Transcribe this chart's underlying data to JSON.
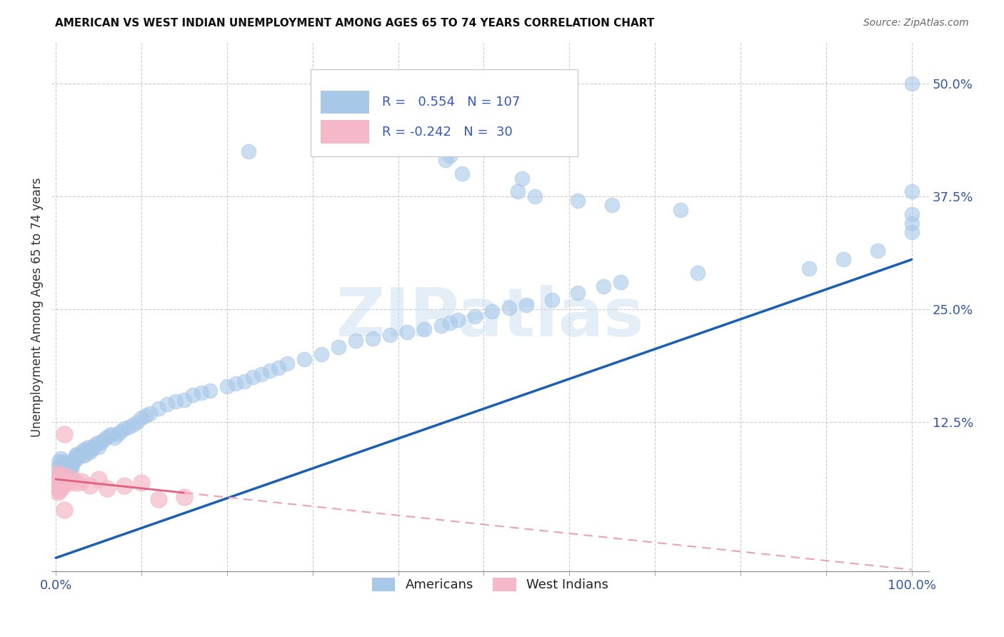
{
  "title": "AMERICAN VS WEST INDIAN UNEMPLOYMENT AMONG AGES 65 TO 74 YEARS CORRELATION CHART",
  "source": "Source: ZipAtlas.com",
  "ylabel": "Unemployment Among Ages 65 to 74 years",
  "xlim": [
    -0.005,
    1.02
  ],
  "ylim": [
    -0.04,
    0.545
  ],
  "xtick_positions": [
    0.0,
    0.1,
    0.2,
    0.3,
    0.4,
    0.5,
    0.6,
    0.7,
    0.8,
    0.9,
    1.0
  ],
  "xtick_labels": [
    "0.0%",
    "",
    "",
    "",
    "",
    "",
    "",
    "",
    "",
    "",
    "100.0%"
  ],
  "ytick_positions": [
    0.125,
    0.25,
    0.375,
    0.5
  ],
  "ytick_labels": [
    "12.5%",
    "25.0%",
    "37.5%",
    "50.0%"
  ],
  "american_color": "#a8c8e8",
  "west_indian_color": "#f4b8c8",
  "trend_american_color": "#1a5fb4",
  "trend_west_indian_color": "#e06080",
  "trend_west_indian_color_dash": "#f0a0b0",
  "legend_r_american": " 0.554",
  "legend_n_american": "107",
  "legend_r_west_indian": "-0.242",
  "legend_n_west_indian": " 30",
  "am_slope": 0.33,
  "am_intercept": -0.025,
  "wi_slope": -0.1,
  "wi_intercept": 0.062,
  "wi_line_xmax": 1.0,
  "watermark_text": "ZIPatlas",
  "american_x": [
    0.002,
    0.003,
    0.004,
    0.005,
    0.005,
    0.006,
    0.006,
    0.007,
    0.007,
    0.008,
    0.008,
    0.009,
    0.009,
    0.01,
    0.01,
    0.011,
    0.011,
    0.012,
    0.012,
    0.013,
    0.013,
    0.014,
    0.015,
    0.015,
    0.016,
    0.016,
    0.017,
    0.018,
    0.019,
    0.02,
    0.021,
    0.022,
    0.023,
    0.024,
    0.025,
    0.026,
    0.028,
    0.03,
    0.032,
    0.033,
    0.035,
    0.037,
    0.038,
    0.04,
    0.042,
    0.044,
    0.046,
    0.048,
    0.05,
    0.052,
    0.055,
    0.058,
    0.062,
    0.065,
    0.068,
    0.072,
    0.076,
    0.08,
    0.085,
    0.09,
    0.095,
    0.1,
    0.105,
    0.11,
    0.12,
    0.13,
    0.14,
    0.15,
    0.16,
    0.17,
    0.18,
    0.2,
    0.21,
    0.22,
    0.23,
    0.24,
    0.25,
    0.26,
    0.27,
    0.29,
    0.31,
    0.33,
    0.35,
    0.37,
    0.39,
    0.41,
    0.43,
    0.45,
    0.46,
    0.47,
    0.49,
    0.51,
    0.53,
    0.55,
    0.58,
    0.61,
    0.64,
    0.66,
    0.75,
    0.88,
    0.92,
    0.96,
    1.0,
    1.0,
    1.0,
    1.0,
    1.0
  ],
  "american_y": [
    0.075,
    0.082,
    0.068,
    0.078,
    0.065,
    0.072,
    0.085,
    0.07,
    0.08,
    0.068,
    0.075,
    0.082,
    0.072,
    0.07,
    0.078,
    0.075,
    0.068,
    0.08,
    0.072,
    0.075,
    0.068,
    0.078,
    0.08,
    0.072,
    0.075,
    0.068,
    0.082,
    0.072,
    0.078,
    0.08,
    0.082,
    0.085,
    0.088,
    0.09,
    0.085,
    0.088,
    0.09,
    0.092,
    0.088,
    0.095,
    0.09,
    0.095,
    0.098,
    0.092,
    0.095,
    0.098,
    0.1,
    0.102,
    0.098,
    0.102,
    0.105,
    0.108,
    0.11,
    0.112,
    0.108,
    0.112,
    0.115,
    0.118,
    0.12,
    0.122,
    0.125,
    0.13,
    0.132,
    0.135,
    0.14,
    0.145,
    0.148,
    0.15,
    0.155,
    0.158,
    0.16,
    0.165,
    0.168,
    0.17,
    0.175,
    0.178,
    0.182,
    0.185,
    0.19,
    0.195,
    0.2,
    0.208,
    0.215,
    0.218,
    0.222,
    0.225,
    0.228,
    0.232,
    0.235,
    0.238,
    0.242,
    0.248,
    0.252,
    0.255,
    0.26,
    0.268,
    0.275,
    0.28,
    0.29,
    0.295,
    0.305,
    0.315,
    0.335,
    0.345,
    0.355,
    0.38,
    0.5
  ],
  "american_y_outliers": [
    0.425,
    0.42,
    0.415,
    0.4,
    0.395,
    0.38,
    0.375,
    0.37,
    0.365,
    0.36
  ],
  "american_x_outliers": [
    0.225,
    0.46,
    0.455,
    0.475,
    0.545,
    0.54,
    0.56,
    0.61,
    0.65,
    0.73
  ],
  "west_indian_x": [
    0.001,
    0.002,
    0.002,
    0.003,
    0.003,
    0.004,
    0.004,
    0.005,
    0.005,
    0.006,
    0.006,
    0.007,
    0.008,
    0.009,
    0.01,
    0.012,
    0.014,
    0.016,
    0.02,
    0.025,
    0.03,
    0.04,
    0.05,
    0.06,
    0.08,
    0.1,
    0.12,
    0.15,
    0.01,
    0.01
  ],
  "west_indian_y": [
    0.06,
    0.048,
    0.068,
    0.052,
    0.058,
    0.05,
    0.062,
    0.055,
    0.065,
    0.052,
    0.06,
    0.058,
    0.062,
    0.058,
    0.062,
    0.065,
    0.06,
    0.058,
    0.062,
    0.058,
    0.06,
    0.055,
    0.062,
    0.052,
    0.055,
    0.058,
    0.04,
    0.042,
    0.112,
    0.028
  ]
}
